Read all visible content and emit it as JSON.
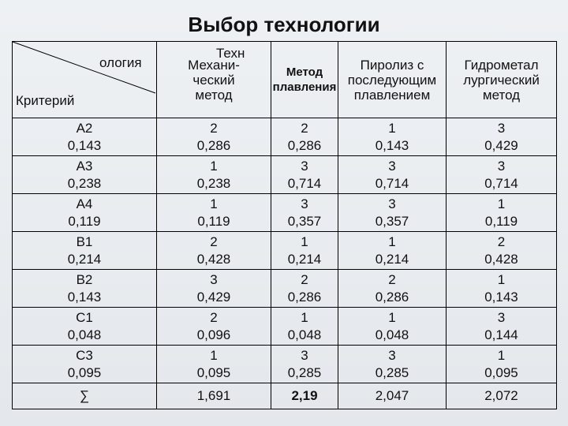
{
  "title": "Выбор технологии",
  "table": {
    "corner": {
      "tech_part1": "Техн",
      "tech_part2": "ология",
      "criterion": "Критерий"
    },
    "columns": [
      [
        "Механи-",
        "ческий",
        "метод"
      ],
      [
        "Метод",
        "плавления"
      ],
      [
        "Пиролиз с",
        "последующим",
        "плавлением"
      ],
      [
        "Гидрометал",
        "лургический",
        "метод"
      ]
    ],
    "rows": [
      [
        [
          "А2",
          "0,143"
        ],
        [
          "2",
          "0,286"
        ],
        [
          "2",
          "0,286"
        ],
        [
          "1",
          "0,143"
        ],
        [
          "3",
          "0,429"
        ]
      ],
      [
        [
          "А3",
          "0,238"
        ],
        [
          "1",
          "0,238"
        ],
        [
          "3",
          "0,714"
        ],
        [
          "3",
          "0,714"
        ],
        [
          "3",
          "0,714"
        ]
      ],
      [
        [
          "А4",
          "0,119"
        ],
        [
          "1",
          "0,119"
        ],
        [
          "3",
          "0,357"
        ],
        [
          "3",
          "0,357"
        ],
        [
          "1",
          "0,119"
        ]
      ],
      [
        [
          "В1",
          "0,214"
        ],
        [
          "2",
          "0,428"
        ],
        [
          "1",
          "0,214"
        ],
        [
          "1",
          "0,214"
        ],
        [
          "2",
          "0,428"
        ]
      ],
      [
        [
          "В2",
          "0,143"
        ],
        [
          "3",
          "0,429"
        ],
        [
          "2",
          "0,286"
        ],
        [
          "2",
          "0,286"
        ],
        [
          "1",
          "0,143"
        ]
      ],
      [
        [
          "С1",
          "0,048"
        ],
        [
          "2",
          "0,096"
        ],
        [
          "1",
          "0,048"
        ],
        [
          "1",
          "0,048"
        ],
        [
          "3",
          "0,144"
        ]
      ],
      [
        [
          "С3",
          "0,095"
        ],
        [
          "1",
          "0,095"
        ],
        [
          "3",
          "0,285"
        ],
        [
          "3",
          "0,285"
        ],
        [
          "1",
          "0,095"
        ]
      ]
    ],
    "sum_row": [
      "∑",
      "1,691",
      "2,19",
      "2,047",
      "2,072"
    ]
  }
}
